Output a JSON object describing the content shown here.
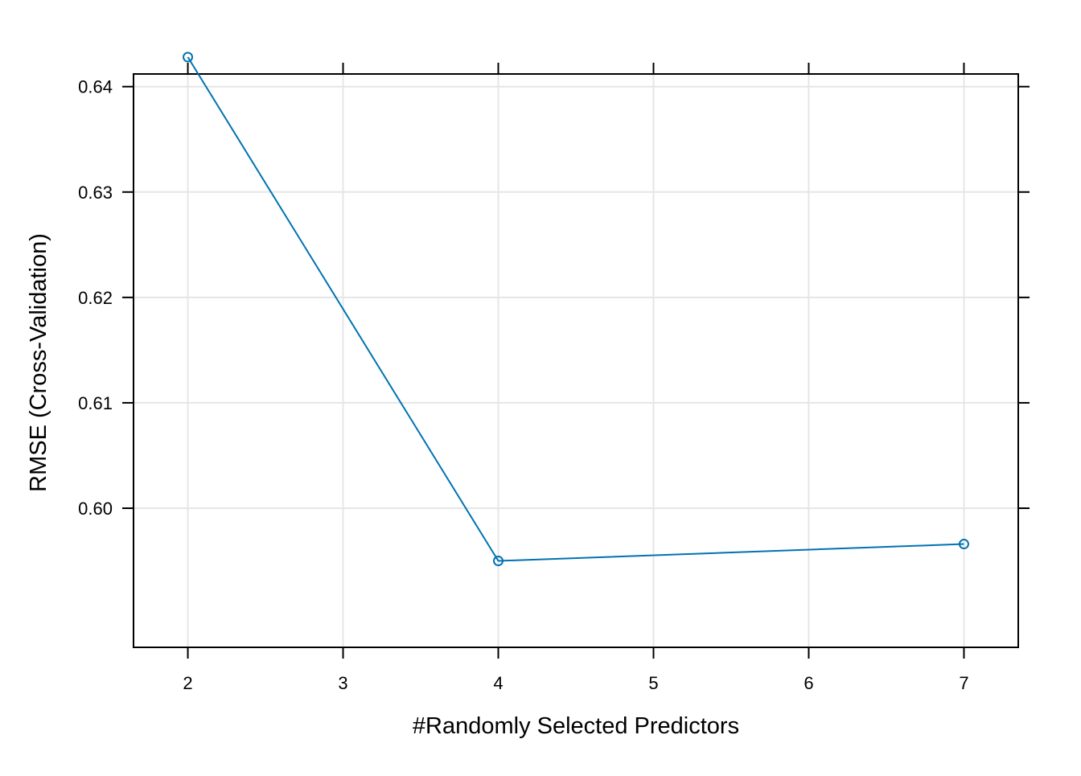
{
  "chart_data": {
    "type": "line",
    "title": "",
    "xlabel": "#Randomly Selected Predictors",
    "ylabel": "RMSE (Cross-Validation)",
    "x_ticks": [
      2,
      3,
      4,
      5,
      6,
      7
    ],
    "y_ticks": [
      "0.60",
      "0.61",
      "0.62",
      "0.63",
      "0.64"
    ],
    "xlim": [
      1.65,
      7.35
    ],
    "ylim": [
      0.5868,
      0.6412
    ],
    "grid": true,
    "marker": "open-circle",
    "series": [
      {
        "name": "",
        "color": "#0072B2",
        "x": [
          2,
          4,
          7
        ],
        "y": [
          0.6428,
          0.595,
          0.5966
        ]
      }
    ]
  }
}
